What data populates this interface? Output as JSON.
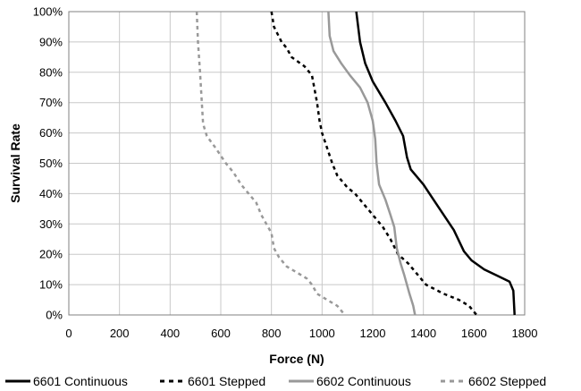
{
  "chart_data": {
    "type": "line",
    "title": "",
    "xlabel": "Force (N)",
    "ylabel": "Survival Rate",
    "xlim": [
      0,
      1800
    ],
    "ylim": [
      0,
      1
    ],
    "x_ticks": [
      "0",
      "200",
      "400",
      "600",
      "800",
      "1000",
      "1200",
      "1400",
      "1600",
      "1800"
    ],
    "y_ticks": [
      "0%",
      "10%",
      "20%",
      "30%",
      "40%",
      "50%",
      "60%",
      "70%",
      "80%",
      "90%",
      "100%"
    ],
    "grid": true,
    "legend_position": "bottom",
    "series": [
      {
        "name": "6601 Continuous",
        "color": "#000000",
        "dash": "solid",
        "points": [
          [
            1135,
            1.0
          ],
          [
            1150,
            0.9
          ],
          [
            1170,
            0.83
          ],
          [
            1200,
            0.77
          ],
          [
            1250,
            0.7
          ],
          [
            1290,
            0.64
          ],
          [
            1320,
            0.59
          ],
          [
            1335,
            0.52
          ],
          [
            1350,
            0.48
          ],
          [
            1400,
            0.43
          ],
          [
            1440,
            0.38
          ],
          [
            1480,
            0.33
          ],
          [
            1520,
            0.28
          ],
          [
            1560,
            0.21
          ],
          [
            1590,
            0.18
          ],
          [
            1640,
            0.15
          ],
          [
            1690,
            0.13
          ],
          [
            1740,
            0.11
          ],
          [
            1755,
            0.08
          ],
          [
            1760,
            0.0
          ]
        ]
      },
      {
        "name": "6601 Stepped",
        "color": "#000000",
        "dash": "dashed",
        "points": [
          [
            800,
            1.0
          ],
          [
            810,
            0.95
          ],
          [
            840,
            0.9
          ],
          [
            860,
            0.88
          ],
          [
            880,
            0.85
          ],
          [
            930,
            0.82
          ],
          [
            960,
            0.79
          ],
          [
            980,
            0.7
          ],
          [
            990,
            0.64
          ],
          [
            1000,
            0.6
          ],
          [
            1020,
            0.55
          ],
          [
            1040,
            0.5
          ],
          [
            1060,
            0.46
          ],
          [
            1100,
            0.42
          ],
          [
            1130,
            0.4
          ],
          [
            1160,
            0.37
          ],
          [
            1200,
            0.33
          ],
          [
            1240,
            0.29
          ],
          [
            1270,
            0.25
          ],
          [
            1300,
            0.2
          ],
          [
            1340,
            0.17
          ],
          [
            1380,
            0.13
          ],
          [
            1410,
            0.1
          ],
          [
            1480,
            0.07
          ],
          [
            1540,
            0.05
          ],
          [
            1580,
            0.03
          ],
          [
            1610,
            0.0
          ]
        ]
      },
      {
        "name": "6602 Continuous",
        "color": "#999999",
        "dash": "solid",
        "points": [
          [
            1025,
            1.0
          ],
          [
            1030,
            0.92
          ],
          [
            1045,
            0.87
          ],
          [
            1075,
            0.83
          ],
          [
            1110,
            0.79
          ],
          [
            1150,
            0.75
          ],
          [
            1180,
            0.7
          ],
          [
            1200,
            0.64
          ],
          [
            1210,
            0.58
          ],
          [
            1215,
            0.5
          ],
          [
            1225,
            0.43
          ],
          [
            1250,
            0.38
          ],
          [
            1270,
            0.33
          ],
          [
            1285,
            0.29
          ],
          [
            1295,
            0.22
          ],
          [
            1310,
            0.17
          ],
          [
            1325,
            0.13
          ],
          [
            1345,
            0.07
          ],
          [
            1360,
            0.03
          ],
          [
            1367,
            0.0
          ]
        ]
      },
      {
        "name": "6602 Stepped",
        "color": "#999999",
        "dash": "dashed",
        "points": [
          [
            505,
            1.0
          ],
          [
            510,
            0.9
          ],
          [
            518,
            0.8
          ],
          [
            525,
            0.7
          ],
          [
            530,
            0.63
          ],
          [
            545,
            0.59
          ],
          [
            580,
            0.55
          ],
          [
            620,
            0.5
          ],
          [
            650,
            0.47
          ],
          [
            680,
            0.43
          ],
          [
            710,
            0.4
          ],
          [
            740,
            0.37
          ],
          [
            760,
            0.33
          ],
          [
            780,
            0.3
          ],
          [
            800,
            0.27
          ],
          [
            810,
            0.22
          ],
          [
            830,
            0.19
          ],
          [
            860,
            0.16
          ],
          [
            900,
            0.14
          ],
          [
            940,
            0.12
          ],
          [
            960,
            0.1
          ],
          [
            980,
            0.07
          ],
          [
            1020,
            0.05
          ],
          [
            1060,
            0.03
          ],
          [
            1090,
            0.0
          ]
        ]
      }
    ]
  }
}
